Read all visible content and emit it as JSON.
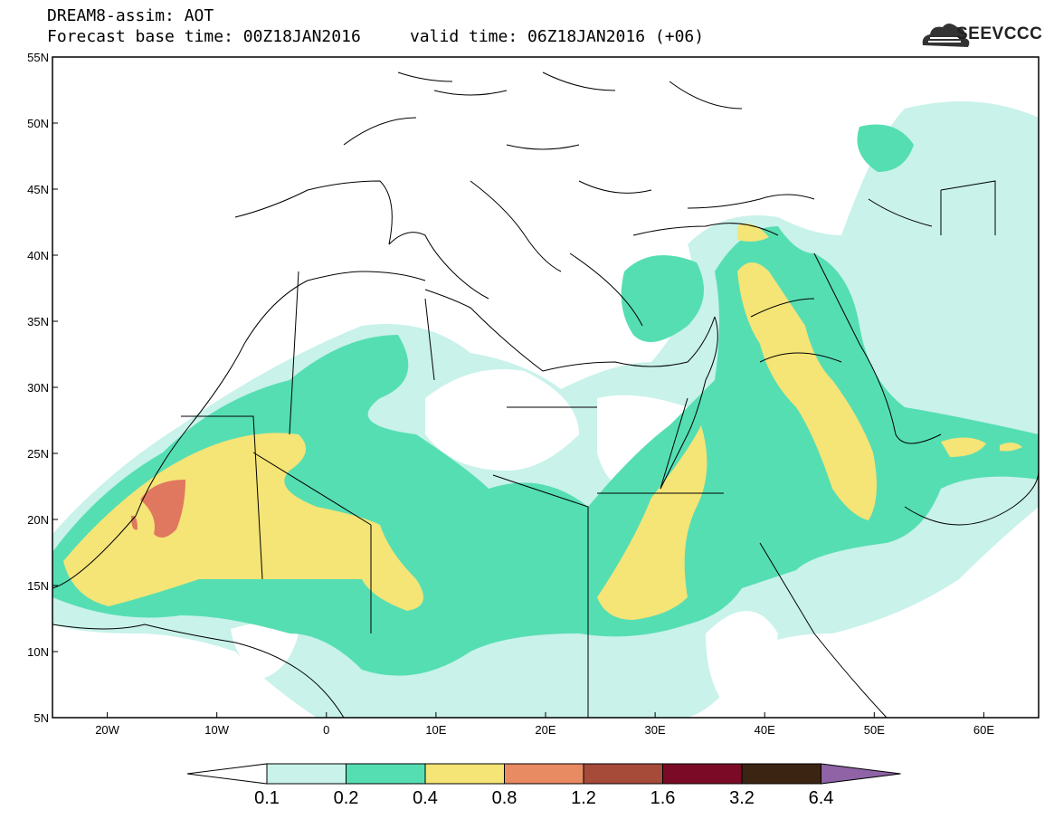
{
  "header": {
    "line1": "DREAM8-assim: AOT",
    "base_time_label": "Forecast base time: 00Z18JAN2016",
    "valid_time_label": "valid time: 06Z18JAN2016 (+06)"
  },
  "logo": {
    "text": "SEEVCCC",
    "icon": "cloud-logo-icon"
  },
  "map": {
    "lat_labels": [
      "55N",
      "50N",
      "45N",
      "40N",
      "35N",
      "30N",
      "25N",
      "20N",
      "15N",
      "10N",
      "5N"
    ],
    "lon_labels": [
      "20W",
      "10W",
      "0",
      "10E",
      "20E",
      "30E",
      "40E",
      "50E",
      "60E"
    ],
    "lon_range": [
      -25,
      65
    ],
    "lat_range": [
      5,
      55
    ]
  },
  "colorbar": {
    "labels": [
      "0.1",
      "0.2",
      "0.4",
      "0.8",
      "1.2",
      "1.6",
      "3.2",
      "6.4"
    ],
    "colors": [
      "#ffffff",
      "#c8f2ea",
      "#56deb3",
      "#f5e476",
      "#e88a62",
      "#a64a3a",
      "#7a0a26",
      "#3b2412",
      "#8f63a6"
    ]
  },
  "field_colors": {
    "c1": "#c8f2ea",
    "c2": "#56deb3",
    "c3": "#f5e476",
    "c4": "#e07860"
  }
}
